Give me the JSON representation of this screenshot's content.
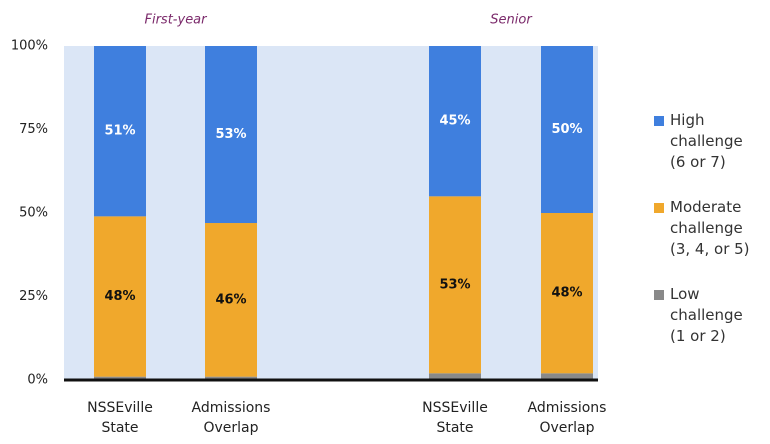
{
  "chart_data": {
    "type": "stacked_bar",
    "groups": [
      "First-year",
      "Senior"
    ],
    "categories": [
      "NSSEville State",
      "Admissions Overlap",
      "NSSEville State",
      "Admissions Overlap"
    ],
    "series": [
      {
        "name": "High challenge (6 or 7)",
        "color": "#3f7fde",
        "values": [
          51,
          53,
          45,
          50
        ],
        "value_labels": [
          "51%",
          "53%",
          "45%",
          "50%"
        ]
      },
      {
        "name": "Moderate challenge (3, 4, or 5)",
        "color": "#f0a82c",
        "values": [
          48,
          46,
          53,
          48
        ],
        "value_labels": [
          "48%",
          "46%",
          "53%",
          "48%"
        ]
      },
      {
        "name": "Low challenge (1 or 2)",
        "color": "#898989",
        "values": [
          1,
          1,
          2,
          2
        ]
      }
    ],
    "ylim": [
      0,
      100
    ],
    "yticks": [
      {
        "value": 0,
        "label": "0%"
      },
      {
        "value": 25,
        "label": "25%"
      },
      {
        "value": 50,
        "label": "50%"
      },
      {
        "value": 75,
        "label": "75%"
      },
      {
        "value": 100,
        "label": "100%"
      }
    ],
    "legend": "right"
  }
}
